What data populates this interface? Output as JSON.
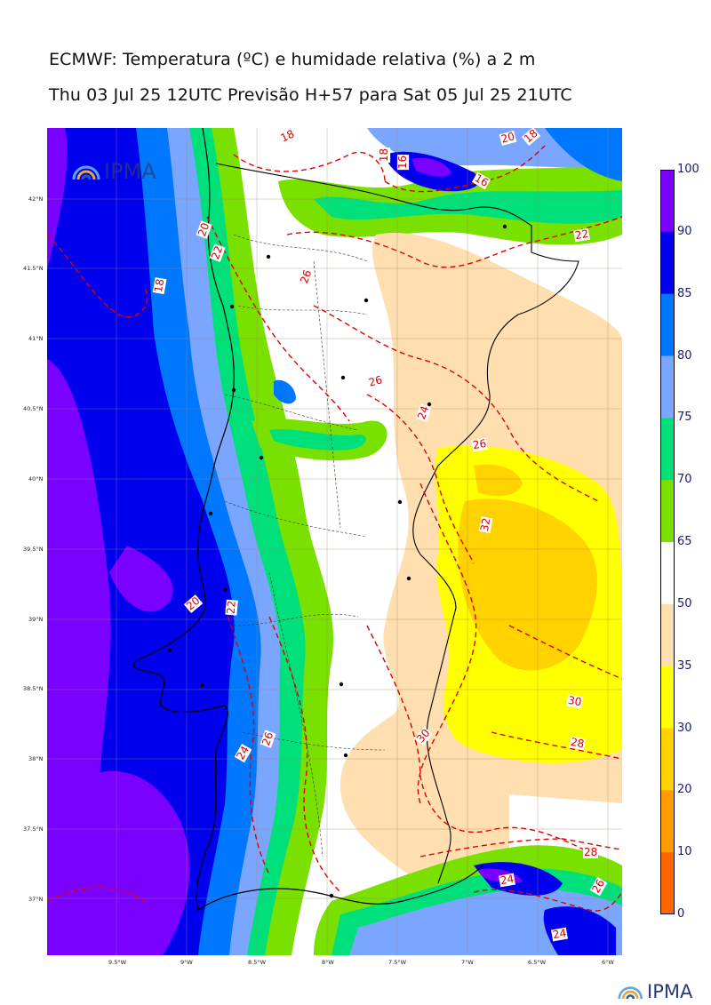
{
  "header": {
    "title": "ECMWF: Temperatura (ºC) e humidade relativa (%) a 2 m",
    "subtitle": "Thu 03 Jul 25 12UTC Previsão H+57 para Sat 05 Jul 25 21UTC"
  },
  "map": {
    "lon_ticks": [
      "9.5°W",
      "9°W",
      "8.5°W",
      "8°W",
      "7.5°W",
      "7°W",
      "6.5°W",
      "6°W"
    ],
    "lat_ticks": [
      "42°N",
      "41.5°N",
      "41°N",
      "40.5°N",
      "40°N",
      "39.5°N",
      "39°N",
      "38.5°N",
      "38°N",
      "37.5°N",
      "37°N"
    ],
    "contour_labels": [
      {
        "text": "18"
      },
      {
        "text": "18"
      },
      {
        "text": "16"
      },
      {
        "text": "16"
      },
      {
        "text": "20"
      },
      {
        "text": "18"
      },
      {
        "text": "22"
      },
      {
        "text": "20"
      },
      {
        "text": "22"
      },
      {
        "text": "18"
      },
      {
        "text": "26"
      },
      {
        "text": "26"
      },
      {
        "text": "24"
      },
      {
        "text": "26"
      },
      {
        "text": "32"
      },
      {
        "text": "20"
      },
      {
        "text": "22"
      },
      {
        "text": "30"
      },
      {
        "text": "30"
      },
      {
        "text": "28"
      },
      {
        "text": "26"
      },
      {
        "text": "24"
      },
      {
        "text": "28"
      },
      {
        "text": "24"
      },
      {
        "text": "26"
      },
      {
        "text": "24"
      }
    ]
  },
  "colorbar": {
    "levels": [
      "100",
      "90",
      "85",
      "80",
      "75",
      "70",
      "65",
      "50",
      "35",
      "30",
      "20",
      "10",
      "0"
    ],
    "colors": [
      "#7a00ff",
      "#0000ee",
      "#0077ff",
      "#7aa6ff",
      "#00e07a",
      "#7ae000",
      "#ffffff",
      "#ffdfb0",
      "#ffff00",
      "#ffd200",
      "#ff9d00",
      "#ff6600",
      "#ff4a00"
    ]
  },
  "logos": {
    "watermark_text": "IPMA",
    "footer_text": "IPMA"
  }
}
